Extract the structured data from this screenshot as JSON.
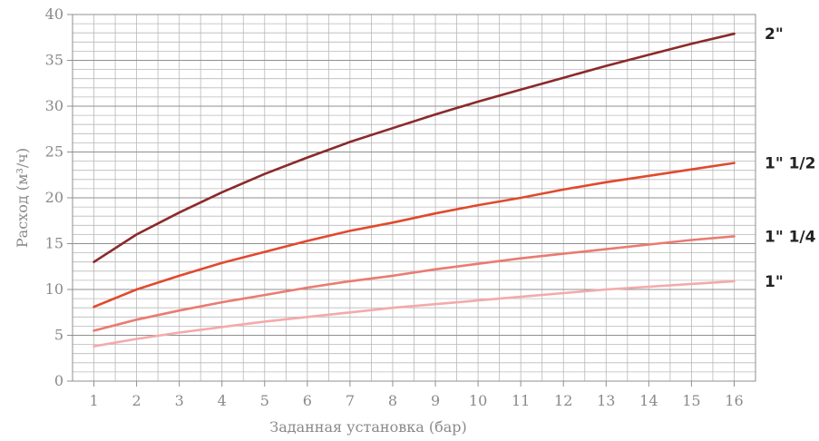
{
  "chart_data": {
    "type": "line",
    "title": "",
    "xlabel": "Заданная установка (бар)",
    "ylabel": "Расход (м³/ч)",
    "xlim": [
      1,
      16
    ],
    "ylim": [
      0,
      40
    ],
    "x_ticks": [
      1,
      2,
      3,
      4,
      5,
      6,
      7,
      8,
      9,
      10,
      11,
      12,
      13,
      14,
      15,
      16
    ],
    "y_ticks": [
      0,
      5,
      10,
      15,
      20,
      25,
      30,
      35,
      40
    ],
    "grid": true,
    "legend": "right, labels at line ends",
    "x": [
      1,
      2,
      3,
      4,
      5,
      6,
      7,
      8,
      9,
      10,
      11,
      12,
      13,
      14,
      15,
      16
    ],
    "series": [
      {
        "name": "2\"",
        "color": "#8b2a2a",
        "values": [
          13.0,
          16.0,
          18.4,
          20.6,
          22.6,
          24.4,
          26.1,
          27.6,
          29.1,
          30.5,
          31.8,
          33.1,
          34.4,
          35.6,
          36.8,
          37.9
        ]
      },
      {
        "name": "1\" 1/2",
        "color": "#e04a2e",
        "values": [
          8.1,
          10.0,
          11.5,
          12.9,
          14.1,
          15.3,
          16.4,
          17.3,
          18.3,
          19.2,
          20.0,
          20.9,
          21.7,
          22.4,
          23.1,
          23.8
        ]
      },
      {
        "name": "1\" 1/4",
        "color": "#ea7b72",
        "values": [
          5.5,
          6.7,
          7.7,
          8.6,
          9.4,
          10.2,
          10.9,
          11.5,
          12.2,
          12.8,
          13.4,
          13.9,
          14.4,
          14.9,
          15.4,
          15.8
        ]
      },
      {
        "name": "1\"",
        "color": "#f4aaaa",
        "values": [
          3.8,
          4.6,
          5.3,
          5.9,
          6.5,
          7.0,
          7.5,
          8.0,
          8.4,
          8.8,
          9.2,
          9.6,
          10.0,
          10.3,
          10.6,
          10.9
        ]
      }
    ]
  }
}
